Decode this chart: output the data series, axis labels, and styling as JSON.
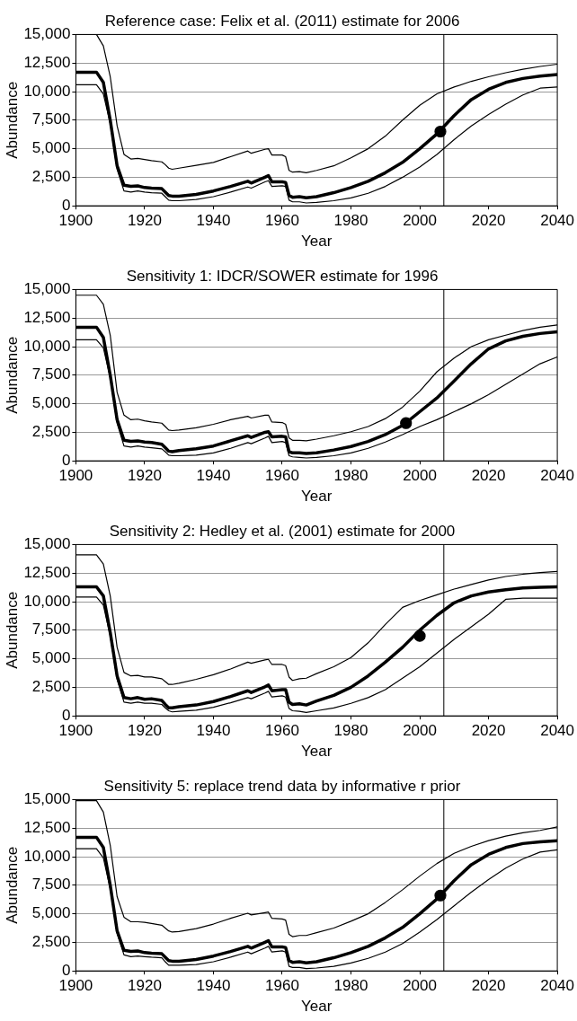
{
  "chart_data": [
    {
      "type": "line",
      "title": "Reference case: Felix et al. (2011) estimate for 2006",
      "xlabel": "Year",
      "ylabel": "Abundance",
      "xlim": [
        1900,
        2040
      ],
      "xticks": [
        1900,
        1920,
        1940,
        1960,
        1980,
        2000,
        2020,
        2040
      ],
      "ylim": [
        0,
        15000
      ],
      "yticks": [
        {
          "value": 0,
          "label": "0"
        },
        {
          "value": 2500,
          "label": "2,500"
        },
        {
          "value": 5000,
          "label": "5,000"
        },
        {
          "value": 7500,
          "label": "7,500"
        },
        {
          "value": 10000,
          "label": "10,000"
        },
        {
          "value": 12500,
          "label": "12,500"
        },
        {
          "value": 15000,
          "label": "15,000"
        }
      ],
      "grid": "y",
      "legend": false,
      "marker": "none",
      "ref_lines": [
        {
          "axis": "x",
          "value": 2007,
          "color": "#000000"
        }
      ],
      "x": [
        1900,
        1906,
        1908,
        1910,
        1912,
        1914,
        1916,
        1918,
        1920,
        1922,
        1925,
        1926,
        1927,
        1928,
        1930,
        1935,
        1940,
        1945,
        1950,
        1951,
        1955,
        1956,
        1957,
        1960,
        1961,
        1962,
        1963,
        1965,
        1967,
        1970,
        1975,
        1980,
        1985,
        1990,
        1995,
        2000,
        2005,
        2010,
        2015,
        2020,
        2025,
        2030,
        2035,
        2040
      ],
      "series": [
        {
          "color": "#000000",
          "values": [
            11700,
            11700,
            10800,
            7500,
            3500,
            1800,
            1700,
            1750,
            1600,
            1550,
            1500,
            1200,
            900,
            850,
            850,
            1000,
            1300,
            1700,
            2150,
            2000,
            2500,
            2650,
            2100,
            2100,
            2050,
            900,
            750,
            800,
            700,
            800,
            1150,
            1600,
            2150,
            2900,
            3800,
            5000,
            6300,
            7900,
            9300,
            10200,
            10800,
            11150,
            11350,
            11500
          ]
        },
        {
          "color": "#000000",
          "values": [
            15000,
            15000,
            14000,
            11300,
            7000,
            4500,
            4100,
            4150,
            4050,
            3950,
            3850,
            3600,
            3300,
            3200,
            3300,
            3550,
            3800,
            4300,
            4800,
            4600,
            4950,
            5000,
            4450,
            4450,
            4300,
            3100,
            2950,
            3000,
            2900,
            3100,
            3500,
            4200,
            5000,
            6100,
            7500,
            8800,
            9800,
            10400,
            10900,
            11300,
            11650,
            11950,
            12200,
            12400
          ]
        },
        {
          "color": "#000000",
          "values": [
            10600,
            10600,
            9800,
            7200,
            3200,
            1300,
            1200,
            1300,
            1200,
            1150,
            1100,
            800,
            500,
            450,
            450,
            550,
            800,
            1200,
            1650,
            1550,
            2100,
            2200,
            1700,
            1750,
            1700,
            500,
            350,
            350,
            250,
            300,
            450,
            700,
            1100,
            1700,
            2500,
            3400,
            4500,
            5800,
            7000,
            8000,
            8900,
            9700,
            10300,
            10400
          ]
        },
        {
          "type": "scatter",
          "marker": "circle",
          "color": "#000000",
          "x": [
            2006
          ],
          "values": [
            6500
          ]
        }
      ]
    },
    {
      "type": "line",
      "title": "Sensitivity 1: IDCR/SOWER estimate for 1996",
      "xlabel": "Year",
      "ylabel": "Abundance",
      "xlim": [
        1900,
        2040
      ],
      "xticks": [
        1900,
        1920,
        1940,
        1960,
        1980,
        2000,
        2020,
        2040
      ],
      "ylim": [
        0,
        15000
      ],
      "yticks": [
        {
          "value": 0,
          "label": "0"
        },
        {
          "value": 2500,
          "label": "2,500"
        },
        {
          "value": 5000,
          "label": "5,000"
        },
        {
          "value": 7500,
          "label": "7,500"
        },
        {
          "value": 10000,
          "label": "10,000"
        },
        {
          "value": 12500,
          "label": "12,500"
        },
        {
          "value": 15000,
          "label": "15,000"
        }
      ],
      "grid": "y",
      "legend": false,
      "marker": "none",
      "ref_lines": [
        {
          "axis": "x",
          "value": 2007,
          "color": "#000000"
        }
      ],
      "x": [
        1900,
        1906,
        1908,
        1910,
        1912,
        1914,
        1916,
        1918,
        1920,
        1922,
        1925,
        1926,
        1927,
        1928,
        1930,
        1935,
        1940,
        1945,
        1950,
        1951,
        1955,
        1956,
        1957,
        1960,
        1961,
        1962,
        1963,
        1965,
        1967,
        1970,
        1975,
        1980,
        1985,
        1990,
        1995,
        2000,
        2005,
        2010,
        2015,
        2020,
        2025,
        2030,
        2035,
        2040
      ],
      "series": [
        {
          "color": "#000000",
          "values": [
            11700,
            11700,
            10800,
            7500,
            3600,
            1800,
            1700,
            1750,
            1650,
            1600,
            1450,
            1150,
            850,
            800,
            900,
            1050,
            1300,
            1750,
            2200,
            2050,
            2500,
            2550,
            2100,
            2150,
            2100,
            800,
            700,
            700,
            650,
            700,
            950,
            1250,
            1700,
            2300,
            3100,
            4300,
            5500,
            7000,
            8500,
            9800,
            10500,
            10900,
            11150,
            11300
          ]
        },
        {
          "color": "#000000",
          "values": [
            14500,
            14500,
            13700,
            11000,
            6000,
            4000,
            3600,
            3650,
            3500,
            3400,
            3300,
            3000,
            2700,
            2650,
            2700,
            2900,
            3200,
            3600,
            3900,
            3750,
            4000,
            4000,
            3400,
            3350,
            3200,
            2000,
            1800,
            1800,
            1750,
            1900,
            2200,
            2550,
            3000,
            3700,
            4700,
            6100,
            7800,
            9000,
            10000,
            10600,
            11000,
            11400,
            11700,
            11900
          ]
        },
        {
          "color": "#000000",
          "values": [
            10600,
            10600,
            9900,
            7300,
            3300,
            1300,
            1200,
            1300,
            1200,
            1150,
            1050,
            800,
            500,
            450,
            450,
            500,
            700,
            1100,
            1600,
            1500,
            2000,
            2150,
            1600,
            1700,
            1600,
            450,
            350,
            300,
            250,
            300,
            450,
            700,
            1100,
            1650,
            2300,
            3000,
            3600,
            4300,
            5000,
            5800,
            6700,
            7600,
            8500,
            9100
          ]
        },
        {
          "type": "scatter",
          "marker": "circle",
          "color": "#000000",
          "x": [
            1996
          ],
          "values": [
            3300
          ]
        }
      ]
    },
    {
      "type": "line",
      "title": "Sensitivity 2: Hedley et al. (2001) estimate for 2000",
      "xlabel": "Year",
      "ylabel": "Abundance",
      "xlim": [
        1900,
        2040
      ],
      "xticks": [
        1900,
        1920,
        1940,
        1960,
        1980,
        2000,
        2020,
        2040
      ],
      "ylim": [
        0,
        15000
      ],
      "yticks": [
        {
          "value": 0,
          "label": "0"
        },
        {
          "value": 2500,
          "label": "2,500"
        },
        {
          "value": 5000,
          "label": "5,000"
        },
        {
          "value": 7500,
          "label": "7,500"
        },
        {
          "value": 10000,
          "label": "10,000"
        },
        {
          "value": 12500,
          "label": "12,500"
        },
        {
          "value": 15000,
          "label": "15,000"
        }
      ],
      "grid": "y",
      "legend": false,
      "marker": "none",
      "ref_lines": [
        {
          "axis": "x",
          "value": 2007,
          "color": "#000000"
        }
      ],
      "x": [
        1900,
        1906,
        1908,
        1910,
        1912,
        1914,
        1916,
        1918,
        1920,
        1922,
        1925,
        1926,
        1927,
        1928,
        1930,
        1935,
        1940,
        1945,
        1950,
        1951,
        1955,
        1956,
        1957,
        1960,
        1961,
        1962,
        1963,
        1965,
        1967,
        1970,
        1975,
        1980,
        1985,
        1990,
        1995,
        2000,
        2005,
        2010,
        2015,
        2020,
        2025,
        2030,
        2035,
        2040
      ],
      "series": [
        {
          "color": "#000000",
          "values": [
            11300,
            11300,
            10500,
            7300,
            3500,
            1600,
            1500,
            1600,
            1450,
            1500,
            1350,
            1000,
            700,
            700,
            800,
            950,
            1250,
            1700,
            2200,
            2050,
            2550,
            2700,
            2200,
            2300,
            2300,
            1200,
            1000,
            1050,
            950,
            1300,
            1800,
            2500,
            3500,
            4700,
            6000,
            7500,
            8800,
            9900,
            10500,
            10850,
            11050,
            11200,
            11250,
            11300
          ]
        },
        {
          "color": "#000000",
          "values": [
            14100,
            14100,
            13300,
            10500,
            6000,
            3800,
            3500,
            3550,
            3400,
            3400,
            3250,
            3000,
            2750,
            2750,
            2850,
            3200,
            3600,
            4100,
            4700,
            4600,
            4900,
            4950,
            4500,
            4500,
            4400,
            3400,
            3100,
            3250,
            3300,
            3700,
            4300,
            5100,
            6400,
            8000,
            9500,
            10100,
            10600,
            11100,
            11500,
            11900,
            12200,
            12400,
            12550,
            12650
          ]
        },
        {
          "color": "#000000",
          "values": [
            10400,
            10400,
            9700,
            7000,
            3200,
            1200,
            1100,
            1200,
            1100,
            1100,
            1000,
            700,
            450,
            350,
            400,
            500,
            750,
            1150,
            1600,
            1500,
            2000,
            2150,
            1650,
            1750,
            1650,
            650,
            450,
            400,
            300,
            450,
            700,
            1100,
            1600,
            2300,
            3300,
            4300,
            5500,
            6700,
            7800,
            8900,
            10200,
            10300,
            10300,
            10300
          ]
        },
        {
          "type": "scatter",
          "marker": "circle",
          "color": "#000000",
          "x": [
            2000
          ],
          "values": [
            7000
          ]
        }
      ]
    },
    {
      "type": "line",
      "title": "Sensitivity 5: replace trend data by informative r prior",
      "xlabel": "Year",
      "ylabel": "Abundance",
      "xlim": [
        1900,
        2040
      ],
      "xticks": [
        1900,
        1920,
        1940,
        1960,
        1980,
        2000,
        2020,
        2040
      ],
      "ylim": [
        0,
        15000
      ],
      "yticks": [
        {
          "value": 0,
          "label": "0"
        },
        {
          "value": 2500,
          "label": "2,500"
        },
        {
          "value": 5000,
          "label": "5,000"
        },
        {
          "value": 7500,
          "label": "7,500"
        },
        {
          "value": 10000,
          "label": "10,000"
        },
        {
          "value": 12500,
          "label": "12,500"
        },
        {
          "value": 15000,
          "label": "15,000"
        }
      ],
      "grid": "y",
      "legend": false,
      "marker": "none",
      "ref_lines": [
        {
          "axis": "x",
          "value": 2007,
          "color": "#000000"
        }
      ],
      "x": [
        1900,
        1906,
        1908,
        1910,
        1912,
        1914,
        1916,
        1918,
        1920,
        1922,
        1925,
        1926,
        1927,
        1928,
        1930,
        1935,
        1940,
        1945,
        1950,
        1951,
        1955,
        1956,
        1957,
        1960,
        1961,
        1962,
        1963,
        1965,
        1967,
        1970,
        1975,
        1980,
        1985,
        1990,
        1995,
        2000,
        2005,
        2010,
        2015,
        2020,
        2025,
        2030,
        2035,
        2040
      ],
      "series": [
        {
          "color": "#000000",
          "values": [
            11700,
            11700,
            10800,
            7500,
            3500,
            1800,
            1700,
            1750,
            1600,
            1550,
            1500,
            1200,
            900,
            850,
            850,
            1000,
            1300,
            1700,
            2150,
            2000,
            2500,
            2650,
            2100,
            2100,
            2050,
            900,
            750,
            800,
            700,
            800,
            1150,
            1600,
            2150,
            2900,
            3800,
            5000,
            6300,
            7900,
            9300,
            10200,
            10800,
            11150,
            11300,
            11400
          ]
        },
        {
          "color": "#000000",
          "values": [
            14900,
            14900,
            13900,
            11000,
            6500,
            4700,
            4300,
            4300,
            4250,
            4150,
            4000,
            3750,
            3500,
            3400,
            3450,
            3700,
            4100,
            4600,
            5050,
            4900,
            5100,
            5150,
            4600,
            4550,
            4450,
            3200,
            3000,
            3100,
            3100,
            3350,
            3750,
            4350,
            5000,
            6000,
            7100,
            8300,
            9400,
            10300,
            10900,
            11400,
            11800,
            12100,
            12300,
            12600
          ]
        },
        {
          "color": "#000000",
          "values": [
            10700,
            10700,
            9900,
            7200,
            3300,
            1400,
            1250,
            1300,
            1250,
            1200,
            1150,
            800,
            500,
            500,
            500,
            550,
            800,
            1200,
            1650,
            1500,
            2000,
            2150,
            1650,
            1750,
            1650,
            400,
            300,
            300,
            200,
            250,
            400,
            700,
            1100,
            1650,
            2400,
            3400,
            4500,
            5700,
            6900,
            8000,
            9000,
            9800,
            10400,
            10600
          ]
        },
        {
          "type": "scatter",
          "marker": "circle",
          "color": "#000000",
          "x": [
            2006
          ],
          "values": [
            6600
          ]
        }
      ]
    }
  ]
}
